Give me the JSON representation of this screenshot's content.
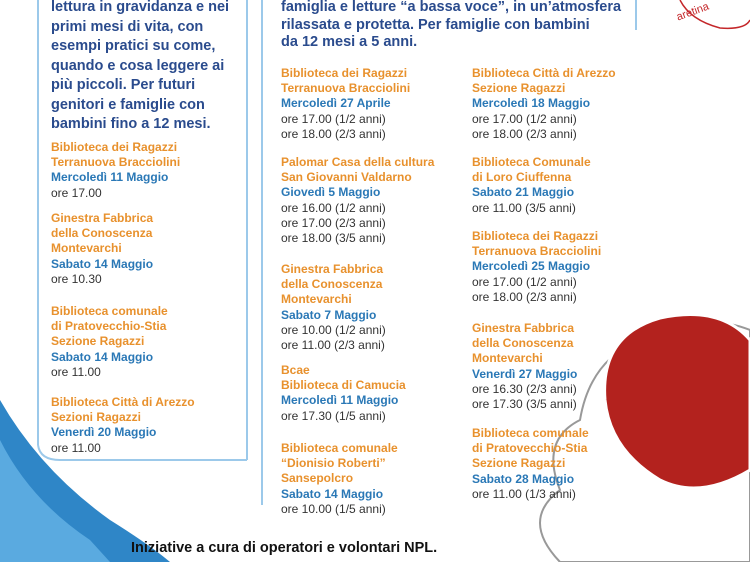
{
  "logo": {
    "text": "aretina"
  },
  "left": {
    "intro": [
      "lettura in gravidanza e nei",
      "primi mesi di vita, con",
      "esempi pratici su come,",
      "quando e cosa leggere ai",
      "più piccoli. Per futuri",
      "genitori e famiglie con",
      "bambini fino a 12 mesi."
    ],
    "events": [
      {
        "venue": [
          "Biblioteca dei Ragazzi",
          "Terranuova Bracciolini"
        ],
        "date": "Mercoledì 11 Maggio",
        "times": [
          "ore 17.00"
        ]
      },
      {
        "venue": [
          "Ginestra Fabbrica",
          "della Conoscenza",
          "Montevarchi"
        ],
        "date": "Sabato 14 Maggio",
        "times": [
          "ore 10.30"
        ]
      },
      {
        "venue": [
          "Biblioteca comunale",
          "di Pratovecchio-Stia",
          "Sezione Ragazzi"
        ],
        "date": "Sabato 14 Maggio",
        "times": [
          "ore 11.00"
        ]
      },
      {
        "venue": [
          "Biblioteca Città di Arezzo",
          "Sezioni Ragazzi"
        ],
        "date": "Venerdì 20 Maggio",
        "times": [
          "ore 11.00"
        ]
      }
    ]
  },
  "middle": {
    "intro": [
      "famiglia e letture “a bassa voce”, in un’atmosfera",
      "rilassata e protetta. Per famiglie con bambini",
      "da 12 mesi a 5 anni."
    ],
    "col1": [
      {
        "venue": [
          "Biblioteca dei Ragazzi",
          "Terranuova Bracciolini"
        ],
        "date": "Mercoledì 27 Aprile",
        "times": [
          "ore 17.00 (1/2 anni)",
          "ore 18.00 (2/3 anni)"
        ]
      },
      {
        "venue": [
          "Palomar Casa della cultura",
          "San Giovanni Valdarno"
        ],
        "date": "Giovedì 5 Maggio",
        "times": [
          "ore 16.00 (1/2 anni)",
          "ore 17.00 (2/3 anni)",
          "ore 18.00 (3/5 anni)"
        ]
      },
      {
        "venue": [
          "Ginestra Fabbrica",
          "della Conoscenza",
          "Montevarchi"
        ],
        "date": "Sabato 7 Maggio",
        "times": [
          "ore 10.00 (1/2 anni)",
          "ore 11.00 (2/3 anni)"
        ]
      },
      {
        "venue": [
          "Bcae",
          "Biblioteca di Camucia"
        ],
        "date": "Mercoledì 11 Maggio",
        "times": [
          "ore 17.30 (1/5 anni)"
        ]
      },
      {
        "venue": [
          "Biblioteca comunale",
          "“Dionisio Roberti”",
          "Sansepolcro"
        ],
        "date": "Sabato 14 Maggio",
        "times": [
          "ore 10.00 (1/5 anni)"
        ]
      }
    ],
    "col2": [
      {
        "venue": [
          "Biblioteca Città di Arezzo",
          "Sezione Ragazzi"
        ],
        "date": "Mercoledì 18 Maggio",
        "times": [
          "ore 17.00 (1/2 anni)",
          "ore 18.00 (2/3 anni)"
        ]
      },
      {
        "venue": [
          "Biblioteca Comunale",
          "di Loro Ciuffenna"
        ],
        "date": "Sabato 21 Maggio",
        "times": [
          "ore 11.00 (3/5 anni)"
        ]
      },
      {
        "venue": [
          "Biblioteca dei Ragazzi",
          "Terranuova Bracciolini"
        ],
        "date": "Mercoledì 25 Maggio",
        "times": [
          "ore 17.00 (1/2 anni)",
          "ore 18.00 (2/3 anni)"
        ]
      },
      {
        "venue": [
          "Ginestra Fabbrica",
          "della Conoscenza",
          "Montevarchi"
        ],
        "date": "Venerdì 27 Maggio",
        "times": [
          "ore 16.30 (2/3 anni)",
          "ore 17.30 (3/5 anni)"
        ]
      },
      {
        "venue": [
          "Biblioteca comunale",
          "di Pratovecchio-Stia",
          "Sezione Ragazzi"
        ],
        "date": "Sabato 28 Maggio",
        "times": [
          "ore 11.00 (1/3 anni)"
        ]
      }
    ]
  },
  "footer": {
    "text": "Iniziative a cura di operatori e volontari NPL."
  }
}
